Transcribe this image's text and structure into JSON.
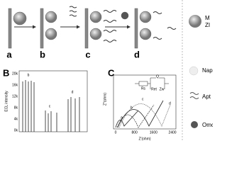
{
  "schematic": {
    "steps": [
      "a",
      "b",
      "c",
      "d"
    ]
  },
  "legend": {
    "items": [
      {
        "lines": [
          "M",
          "ZI"
        ]
      },
      {
        "label": "Nap"
      },
      {
        "label": "Apt"
      },
      {
        "label": "Omc"
      }
    ]
  },
  "panel_b": {
    "label": "B",
    "y_axis_label": "ECL intensity",
    "y_ticks": [
      "20k",
      "16k",
      "12k",
      "8k",
      "4k",
      "0k"
    ],
    "peak_labels": [
      "b",
      "c",
      "d"
    ]
  },
  "panel_c": {
    "label": "C",
    "y_axis_label": "Z''(ohm)",
    "x_axis_label": "Z'(ohm)",
    "x_ticks": [
      "0",
      "800",
      "1600",
      "2400"
    ],
    "curve_labels": [
      "a",
      "b",
      "c",
      "d"
    ],
    "circuit": [
      "Q",
      "Rs",
      "Ret",
      "Zw"
    ]
  }
}
